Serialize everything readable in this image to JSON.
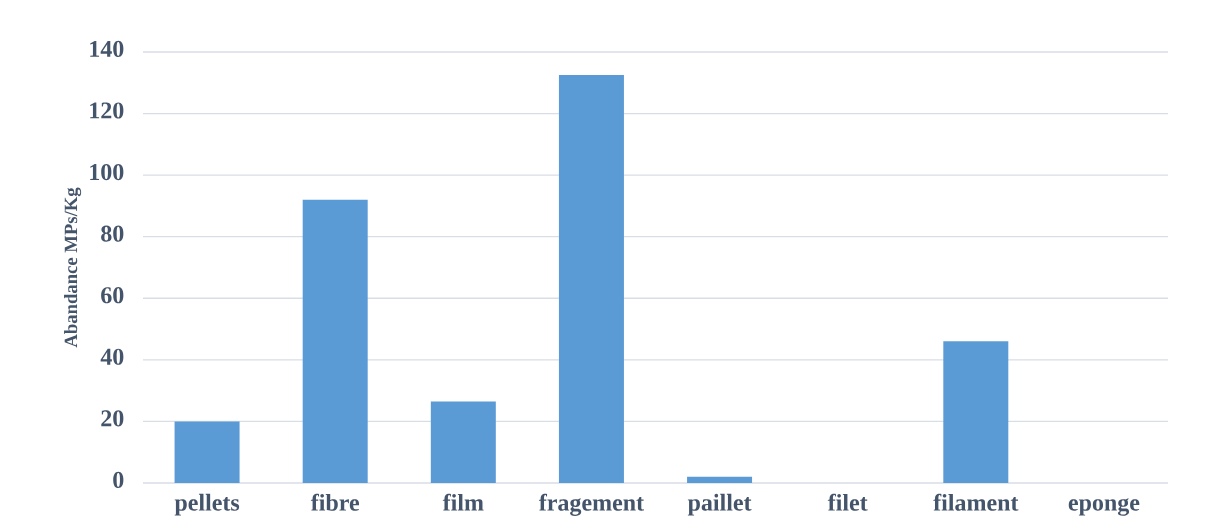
{
  "chart_data": {
    "type": "bar",
    "ylabel": "Abandance MPs/Kg",
    "categories": [
      "pellets",
      "fibre",
      "film",
      "fragement",
      "paillet",
      "filet",
      "filament",
      "eponge"
    ],
    "values": [
      20,
      92,
      26.5,
      132.5,
      2,
      0,
      46,
      0
    ],
    "color": "#5b9bd5",
    "ylim": [
      0,
      140
    ],
    "yticks": [
      0,
      20,
      40,
      60,
      80,
      100,
      120,
      140
    ],
    "grid": "y"
  }
}
